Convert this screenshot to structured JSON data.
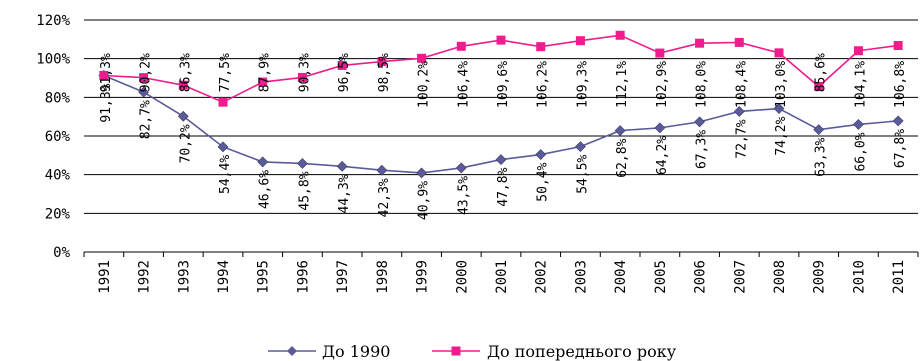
{
  "chart_data": {
    "type": "line",
    "categories": [
      "1991",
      "1992",
      "1993",
      "1994",
      "1995",
      "1996",
      "1997",
      "1998",
      "1999",
      "2000",
      "2001",
      "2002",
      "2003",
      "2004",
      "2005",
      "2006",
      "2007",
      "2008",
      "2009",
      "2010",
      "2011"
    ],
    "y_ticks": [
      "0%",
      "20%",
      "40%",
      "60%",
      "80%",
      "100%",
      "120%"
    ],
    "ylim": [
      0,
      120
    ],
    "grid": "horizontal",
    "legend_position": "bottom",
    "series": [
      {
        "name": "До 1990",
        "color": "#5b5b9a",
        "marker": "diamond",
        "values": [
          91.3,
          82.7,
          70.2,
          54.4,
          46.6,
          45.8,
          44.3,
          42.3,
          40.9,
          43.5,
          47.8,
          50.4,
          54.5,
          62.8,
          64.2,
          67.3,
          72.7,
          74.2,
          63.3,
          66.0,
          67.8
        ],
        "labels": [
          "91,3%",
          "82,7%",
          "70,2%",
          "54,4%",
          "46,6%",
          "45,8%",
          "44,3%",
          "42,3%",
          "40,9%",
          "43,5%",
          "47,8%",
          "50,4%",
          "54,5%",
          "62,8%",
          "64,2%",
          "67,3%",
          "72,7%",
          "74,2%",
          "63,3%",
          "66,0%",
          "67,8%"
        ]
      },
      {
        "name": "До попереднього року",
        "color": "#ee1c8c",
        "marker": "square",
        "values": [
          91.3,
          90.2,
          86.3,
          77.5,
          87.9,
          90.3,
          96.5,
          98.5,
          100.2,
          106.4,
          109.6,
          106.2,
          109.3,
          112.1,
          102.9,
          108.0,
          108.4,
          103.0,
          85.6,
          104.1,
          106.8
        ],
        "labels": [
          "91,3%",
          "90,2%",
          "86,3%",
          "77,5%",
          "87,9%",
          "90,3%",
          "96,5%",
          "98,5%",
          "100,2%",
          "106,4%",
          "109,6%",
          "106,2%",
          "109,3%",
          "112,1%",
          "102,9%",
          "108,0%",
          "108,4%",
          "103,0%",
          "85,6%",
          "104,1%",
          "106,8%"
        ]
      }
    ]
  }
}
